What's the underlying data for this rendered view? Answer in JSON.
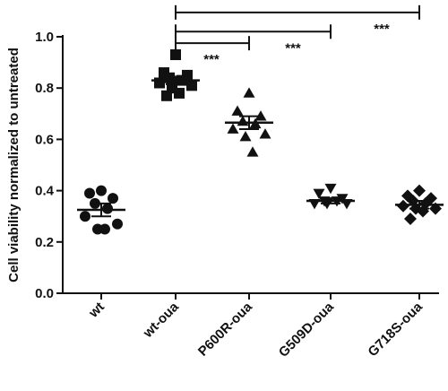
{
  "chart_data": {
    "type": "scatter",
    "ylabel": "Cell viability normalized to untreated",
    "ylim": [
      0,
      1.0
    ],
    "yticks": [
      {
        "value": 0.0,
        "label": "0.0"
      },
      {
        "value": 0.2,
        "label": "0.2"
      },
      {
        "value": 0.4,
        "label": "0.4"
      },
      {
        "value": 0.6,
        "label": "0.6"
      },
      {
        "value": 0.8,
        "label": "0.8"
      },
      {
        "value": 1.0,
        "label": "1.0"
      }
    ],
    "categories": [
      "wt",
      "wt-oua",
      "P600R-oua",
      "G509D-oua",
      "G718S-oua"
    ],
    "groups": [
      {
        "category": "wt",
        "marker": "circle",
        "points": [
          0.4,
          0.39,
          0.37,
          0.35,
          0.33,
          0.3,
          0.27,
          0.25,
          0.25
        ],
        "mean": 0.325,
        "sem_low": 0.3,
        "sem_high": 0.35
      },
      {
        "category": "wt-oua",
        "marker": "square",
        "points": [
          0.93,
          0.86,
          0.85,
          0.84,
          0.83,
          0.82,
          0.81,
          0.8,
          0.78,
          0.77
        ],
        "mean": 0.83,
        "sem_low": 0.815,
        "sem_high": 0.845
      },
      {
        "category": "P600R-oua",
        "marker": "triangle-up",
        "points": [
          0.78,
          0.71,
          0.69,
          0.67,
          0.66,
          0.64,
          0.62,
          0.61,
          0.55
        ],
        "mean": 0.665,
        "sem_low": 0.64,
        "sem_high": 0.69
      },
      {
        "category": "G509D-oua",
        "marker": "triangle-down",
        "points": [
          0.41,
          0.39,
          0.37,
          0.36,
          0.36,
          0.35,
          0.35,
          0.35
        ],
        "mean": 0.36,
        "sem_low": 0.35,
        "sem_high": 0.37
      },
      {
        "category": "G718S-oua",
        "marker": "diamond",
        "points": [
          0.4,
          0.38,
          0.37,
          0.36,
          0.35,
          0.34,
          0.33,
          0.33,
          0.32,
          0.29
        ],
        "mean": 0.345,
        "sem_low": 0.33,
        "sem_high": 0.36
      }
    ],
    "significance": [
      {
        "from": "wt-oua",
        "to": "P600R-oua",
        "label": "***",
        "y": 0.975
      },
      {
        "from": "wt-oua",
        "to": "G509D-oua",
        "label": "***",
        "y": 1.02
      },
      {
        "from": "wt-oua",
        "to": "G718S-oua",
        "label": "***",
        "y": 1.095
      }
    ],
    "grid": false,
    "legend": "none",
    "color": "#111111"
  }
}
